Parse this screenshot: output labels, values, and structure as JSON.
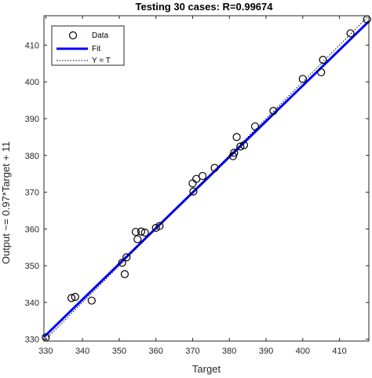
{
  "chart_data": {
    "type": "scatter",
    "title": "Testing 30 cases: R=0.99674",
    "xlabel": "Target",
    "ylabel": "Output ~= 0.97*Target + 11",
    "xlim": [
      329.5,
      418
    ],
    "ylim": [
      329.5,
      418
    ],
    "xticks": [
      330,
      340,
      350,
      360,
      370,
      380,
      390,
      400,
      410
    ],
    "yticks": [
      330,
      340,
      350,
      360,
      370,
      380,
      390,
      400,
      410
    ],
    "grid": false,
    "legend": {
      "position": "top-left",
      "entries": [
        "Data",
        "Fit",
        "Y = T"
      ]
    },
    "colors": {
      "data_marker": "#000000",
      "fit_line": "#0000ff",
      "identity_line": "#000000"
    },
    "series": [
      {
        "name": "Data",
        "type": "scatter",
        "x": [
          330,
          337,
          338,
          342.5,
          350.8,
          351.5,
          352,
          354.5,
          355,
          356,
          357,
          360,
          361,
          370,
          370.2,
          371,
          372.7,
          376,
          381,
          381.3,
          382,
          383,
          384,
          387,
          392,
          400,
          405,
          405.5,
          413,
          417.5
        ],
        "y": [
          330.5,
          341.2,
          341.5,
          340.5,
          350.8,
          347.7,
          352.3,
          359.2,
          357.2,
          359.3,
          359,
          360.3,
          360.8,
          372.4,
          370.2,
          373.6,
          374.4,
          376.6,
          379.8,
          380.7,
          385,
          382.4,
          382.8,
          387.9,
          392.1,
          400.8,
          402.6,
          406,
          413.2,
          417
        ]
      },
      {
        "name": "Fit",
        "type": "line",
        "slope": 0.97,
        "intercept": 11
      },
      {
        "name": "Y = T",
        "type": "line",
        "slope": 1,
        "intercept": 0
      }
    ]
  }
}
